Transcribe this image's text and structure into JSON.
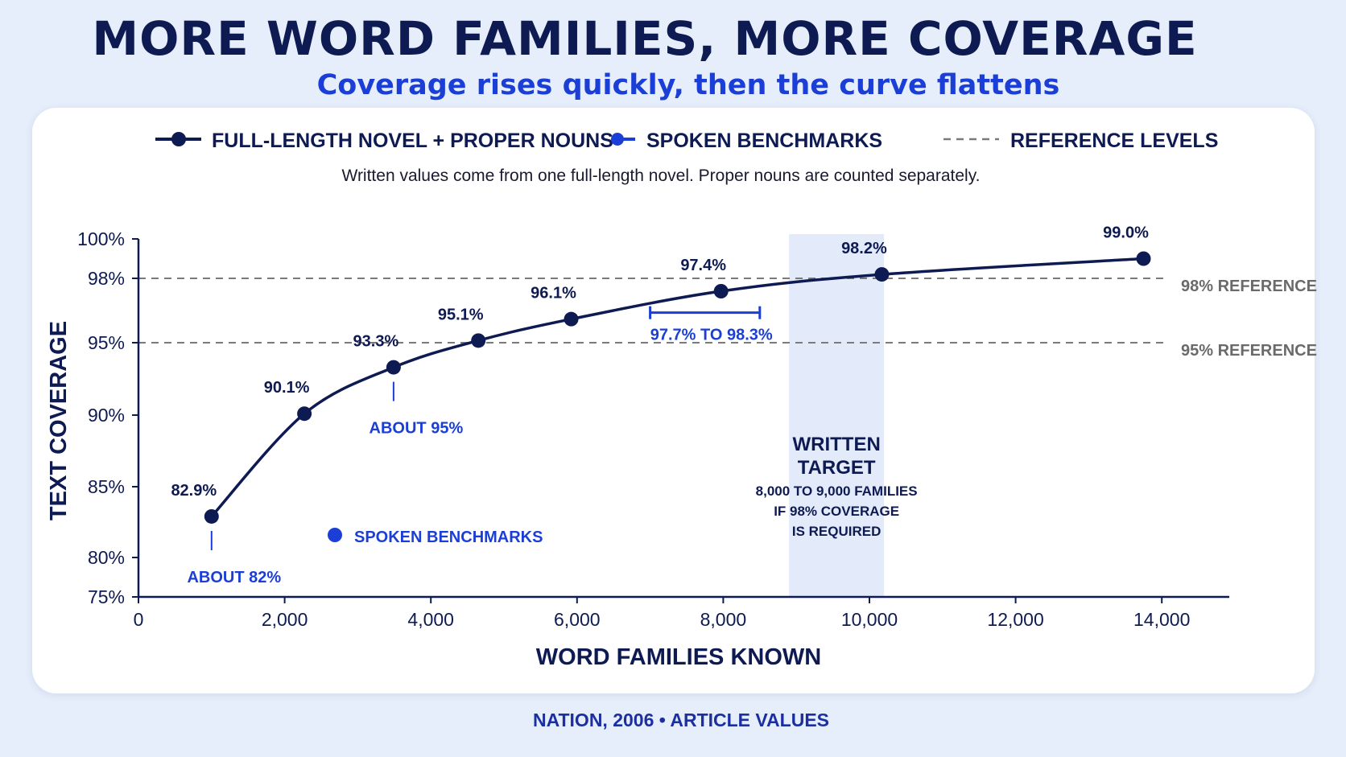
{
  "title": "MORE WORD FAMILIES, MORE COVERAGE",
  "subtitle": "Coverage rises quickly, then the curve flattens",
  "footer": "NATION, 2006 • ARTICLE VALUES",
  "colors": {
    "written_series": "#0e1a52",
    "spoken_series": "#1b3fd6",
    "reference": "#7a7a7a",
    "target_band": "#e3ebfb"
  },
  "chart_data": {
    "type": "line",
    "note": "Written values come from one full-length novel. Proper nouns are counted separately.",
    "xlabel": "WORD FAMILIES KNOWN",
    "ylabel": "TEXT COVERAGE",
    "xlim": [
      0,
      15000
    ],
    "x_ticks": [
      0,
      2000,
      4000,
      6000,
      8000,
      10000,
      12000,
      14000
    ],
    "x_tick_labels": [
      "0",
      "2,000",
      "4,000",
      "6,000",
      "8,000",
      "10,000",
      "12,000",
      "14,000"
    ],
    "y_ticks": [
      75,
      80,
      85,
      90,
      95,
      98,
      100
    ],
    "y_tick_labels": [
      "75%",
      "80%",
      "85%",
      "90%",
      "95%",
      "98%",
      "100%"
    ],
    "grid": false,
    "legend": [
      {
        "key": "written",
        "label": "FULL-LENGTH NOVEL + PROPER NOUNS"
      },
      {
        "key": "spoken",
        "label": "SPOKEN BENCHMARKS"
      },
      {
        "key": "reference",
        "label": "REFERENCE LEVELS"
      }
    ],
    "series": [
      {
        "name": "FULL-LENGTH NOVEL + PROPER NOUNS",
        "x": [
          1000,
          2270,
          3490,
          4650,
          5920,
          7970,
          10170,
          13750
        ],
        "values": [
          82.9,
          90.1,
          93.3,
          95.1,
          96.1,
          97.4,
          98.2,
          99.0
        ],
        "labels": [
          "82.9%",
          "90.1%",
          "93.3%",
          "95.1%",
          "96.1%",
          "97.4%",
          "98.2%",
          "99.0%"
        ]
      }
    ],
    "spoken_benchmarks": {
      "legend_label": "SPOKEN BENCHMARKS",
      "points": [
        {
          "x": 1000,
          "label": "ABOUT 82%"
        },
        {
          "x": 3490,
          "label": "ABOUT 95%"
        }
      ],
      "range": {
        "x_from": 7000,
        "x_to": 8500,
        "y": 96.4,
        "label": "97.7% TO 98.3%"
      }
    },
    "reference_lines": [
      {
        "y": 98,
        "label": "98% REFERENCE"
      },
      {
        "y": 95,
        "label": "95% REFERENCE"
      }
    ],
    "target_band": {
      "x_from": 8900,
      "x_to": 10200,
      "title_lines": [
        "WRITTEN",
        "TARGET"
      ],
      "note_lines": [
        "8,000 TO 9,000 FAMILIES",
        "IF 98% COVERAGE",
        "IS REQUIRED"
      ]
    }
  }
}
